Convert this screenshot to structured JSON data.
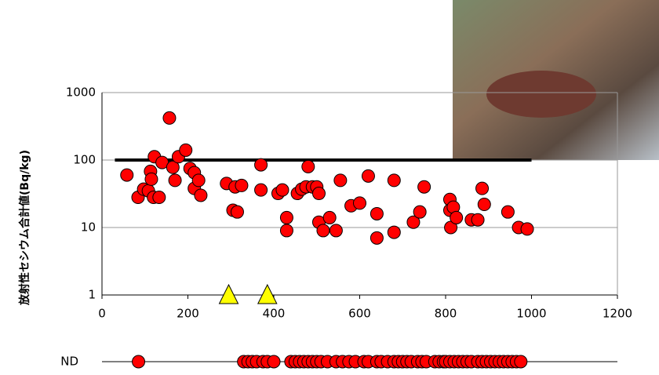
{
  "chart_data": {
    "type": "scatter",
    "y_label": "放射性セシウム合計値(Bq/kg)",
    "yscale": "log",
    "grid": true,
    "xlim": [
      0,
      1200
    ],
    "xticks": [
      0,
      200,
      400,
      600,
      800,
      1000,
      1200
    ],
    "ylim": [
      1,
      1000
    ],
    "yticks": [
      1,
      10,
      100,
      1000
    ],
    "hline": {
      "y": 100,
      "x": [
        30,
        1000
      ],
      "color": "#000000"
    },
    "series": [
      {
        "marker": "circle",
        "color": "#ff0000",
        "x": [
          58,
          84,
          97,
          108,
          113,
          115,
          120,
          122,
          133,
          140,
          157,
          165,
          170,
          178,
          195,
          205,
          215,
          215,
          225,
          230,
          290,
          305,
          315,
          310,
          325,
          370,
          370,
          410,
          420,
          430,
          430,
          455,
          465,
          475,
          480,
          490,
          500,
          505,
          505,
          515,
          530,
          545,
          555,
          580,
          600,
          620,
          640,
          640,
          680,
          680,
          725,
          740,
          750,
          810,
          810,
          812,
          818,
          825,
          860,
          875,
          885,
          890,
          945,
          970,
          990
        ],
        "values": [
          60,
          28,
          37,
          35,
          68,
          52,
          28,
          112,
          28,
          92,
          420,
          78,
          50,
          112,
          140,
          75,
          65,
          38,
          50,
          30,
          45,
          18,
          17,
          40,
          42,
          85,
          36,
          32,
          36,
          14,
          9,
          32,
          37,
          40,
          80,
          40,
          40,
          32,
          12,
          9,
          14,
          9,
          50,
          21,
          23,
          58,
          7,
          16,
          8.5,
          50,
          12,
          17,
          40,
          26,
          18,
          10,
          20,
          14,
          13,
          13,
          38,
          22,
          17,
          10,
          9.5
        ]
      },
      {
        "marker": "triangle",
        "color": "#ffff00",
        "x": [
          295,
          385
        ],
        "values": [
          1,
          1
        ]
      }
    ],
    "nd": {
      "label": "ND",
      "color": "#ff0000",
      "x": [
        85,
        330,
        340,
        350,
        360,
        375,
        385,
        400,
        440,
        450,
        460,
        470,
        480,
        490,
        500,
        510,
        525,
        545,
        560,
        575,
        590,
        610,
        620,
        640,
        650,
        665,
        680,
        690,
        700,
        710,
        720,
        735,
        745,
        755,
        775,
        785,
        795,
        800,
        810,
        820,
        830,
        840,
        850,
        860,
        875,
        885,
        895,
        905,
        915,
        925,
        935,
        945,
        955,
        965,
        975
      ]
    }
  }
}
